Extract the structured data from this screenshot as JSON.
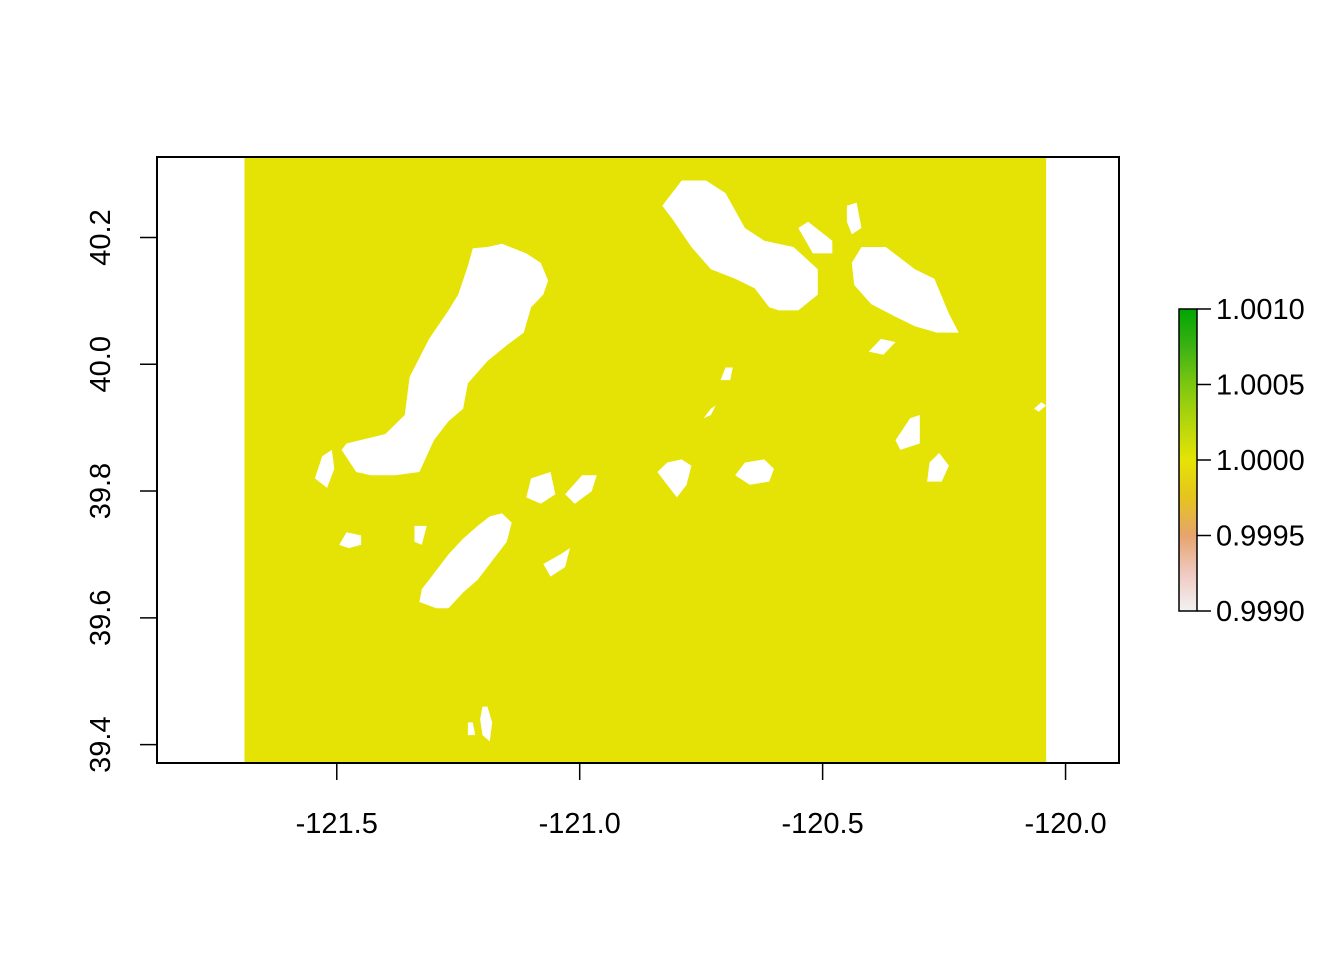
{
  "chart_data": {
    "type": "heatmap",
    "title": "",
    "xlabel": "",
    "ylabel": "",
    "xlim": [
      -121.87,
      -119.89
    ],
    "ylim": [
      39.371,
      40.327
    ],
    "raster_extent": {
      "xmin": -121.69,
      "xmax": -120.04,
      "ymin": 39.371,
      "ymax": 40.327
    },
    "raster_value": 1,
    "raster_color": "#E5E305",
    "nodata_color": "#FFFFFF",
    "x_ticks": [
      {
        "value": -121.5,
        "label": "-121.5"
      },
      {
        "value": -121.0,
        "label": "-121.0"
      },
      {
        "value": -120.5,
        "label": "-120.5"
      },
      {
        "value": -120.0,
        "label": "-120.0"
      }
    ],
    "y_ticks": [
      {
        "value": 39.4,
        "label": "39.4"
      },
      {
        "value": 39.6,
        "label": "39.6"
      },
      {
        "value": 39.8,
        "label": "39.8"
      },
      {
        "value": 40.0,
        "label": "40.0"
      },
      {
        "value": 40.2,
        "label": "40.2"
      }
    ],
    "legend": {
      "placement": "right",
      "range": [
        0.999,
        1.001
      ],
      "colors": [
        "#F2F2F2",
        "#F0C9C0",
        "#E6A46E",
        "#E5C41E",
        "#E5E305",
        "#B4D60C",
        "#7CC710",
        "#3CB214",
        "#00A600"
      ],
      "ticks": [
        {
          "value": 1.001,
          "label": "1.0010"
        },
        {
          "value": 1.0005,
          "label": "1.0005"
        },
        {
          "value": 1.0,
          "label": "1.0000"
        },
        {
          "value": 0.9995,
          "label": "0.9995"
        },
        {
          "value": 0.999,
          "label": "0.9990"
        }
      ]
    },
    "nodata_regions": [
      [
        [
          -121.22,
          40.183
        ],
        [
          -121.19,
          40.185
        ],
        [
          -121.16,
          40.19
        ],
        [
          -121.11,
          40.175
        ],
        [
          -121.08,
          40.16
        ],
        [
          -121.065,
          40.132
        ],
        [
          -121.075,
          40.11
        ],
        [
          -121.1,
          40.09
        ],
        [
          -121.115,
          40.05
        ],
        [
          -121.15,
          40.03
        ],
        [
          -121.19,
          40.005
        ],
        [
          -121.23,
          39.97
        ],
        [
          -121.24,
          39.93
        ],
        [
          -121.27,
          39.91
        ],
        [
          -121.3,
          39.88
        ],
        [
          -121.33,
          39.83
        ],
        [
          -121.38,
          39.825
        ],
        [
          -121.43,
          39.825
        ],
        [
          -121.46,
          39.83
        ],
        [
          -121.49,
          39.865
        ],
        [
          -121.48,
          39.875
        ],
        [
          -121.4,
          39.89
        ],
        [
          -121.36,
          39.92
        ],
        [
          -121.35,
          39.98
        ],
        [
          -121.31,
          40.04
        ],
        [
          -121.27,
          40.085
        ],
        [
          -121.25,
          40.11
        ],
        [
          -121.23,
          40.155
        ]
      ],
      [
        [
          -121.53,
          39.855
        ],
        [
          -121.51,
          39.865
        ],
        [
          -121.505,
          39.835
        ],
        [
          -121.52,
          39.805
        ],
        [
          -121.545,
          39.82
        ]
      ],
      [
        [
          -121.48,
          39.735
        ],
        [
          -121.45,
          39.73
        ],
        [
          -121.45,
          39.715
        ],
        [
          -121.475,
          39.71
        ],
        [
          -121.495,
          39.715
        ]
      ],
      [
        [
          -121.34,
          39.745
        ],
        [
          -121.315,
          39.745
        ],
        [
          -121.325,
          39.715
        ],
        [
          -121.34,
          39.72
        ]
      ],
      [
        [
          -121.16,
          39.765
        ],
        [
          -121.14,
          39.75
        ],
        [
          -121.15,
          39.72
        ],
        [
          -121.18,
          39.69
        ],
        [
          -121.21,
          39.66
        ],
        [
          -121.24,
          39.64
        ],
        [
          -121.27,
          39.615
        ],
        [
          -121.295,
          39.615
        ],
        [
          -121.33,
          39.625
        ],
        [
          -121.325,
          39.645
        ],
        [
          -121.3,
          39.67
        ],
        [
          -121.27,
          39.7
        ],
        [
          -121.24,
          39.725
        ],
        [
          -121.21,
          39.745
        ],
        [
          -121.185,
          39.76
        ]
      ],
      [
        [
          -121.1,
          39.82
        ],
        [
          -121.06,
          39.83
        ],
        [
          -121.05,
          39.795
        ],
        [
          -121.08,
          39.78
        ],
        [
          -121.11,
          39.79
        ]
      ],
      [
        [
          -120.995,
          39.825
        ],
        [
          -120.965,
          39.825
        ],
        [
          -120.975,
          39.8
        ],
        [
          -121.01,
          39.78
        ],
        [
          -121.03,
          39.795
        ]
      ],
      [
        [
          -121.04,
          39.7
        ],
        [
          -121.02,
          39.71
        ],
        [
          -121.03,
          39.68
        ],
        [
          -121.06,
          39.665
        ],
        [
          -121.075,
          39.685
        ]
      ],
      [
        [
          -120.79,
          40.29
        ],
        [
          -120.74,
          40.29
        ],
        [
          -120.7,
          40.27
        ],
        [
          -120.66,
          40.215
        ],
        [
          -120.62,
          40.195
        ],
        [
          -120.56,
          40.185
        ],
        [
          -120.51,
          40.15
        ],
        [
          -120.51,
          40.11
        ],
        [
          -120.55,
          40.085
        ],
        [
          -120.59,
          40.085
        ],
        [
          -120.61,
          40.09
        ],
        [
          -120.64,
          40.12
        ],
        [
          -120.68,
          40.135
        ],
        [
          -120.73,
          40.15
        ],
        [
          -120.77,
          40.185
        ],
        [
          -120.81,
          40.23
        ],
        [
          -120.83,
          40.25
        ]
      ],
      [
        [
          -120.55,
          40.215
        ],
        [
          -120.53,
          40.225
        ],
        [
          -120.48,
          40.195
        ],
        [
          -120.48,
          40.175
        ],
        [
          -120.52,
          40.175
        ]
      ],
      [
        [
          -120.45,
          40.25
        ],
        [
          -120.43,
          40.255
        ],
        [
          -120.42,
          40.215
        ],
        [
          -120.44,
          40.205
        ],
        [
          -120.45,
          40.225
        ]
      ],
      [
        [
          -120.42,
          40.185
        ],
        [
          -120.37,
          40.185
        ],
        [
          -120.31,
          40.15
        ],
        [
          -120.27,
          40.135
        ],
        [
          -120.24,
          40.08
        ],
        [
          -120.22,
          40.05
        ],
        [
          -120.265,
          40.05
        ],
        [
          -120.31,
          40.06
        ],
        [
          -120.35,
          40.075
        ],
        [
          -120.4,
          40.095
        ],
        [
          -120.435,
          40.125
        ],
        [
          -120.44,
          40.16
        ]
      ],
      [
        [
          -120.38,
          40.04
        ],
        [
          -120.35,
          40.035
        ],
        [
          -120.375,
          40.015
        ],
        [
          -120.405,
          40.02
        ]
      ],
      [
        [
          -120.32,
          39.915
        ],
        [
          -120.3,
          39.92
        ],
        [
          -120.3,
          39.875
        ],
        [
          -120.34,
          39.865
        ],
        [
          -120.35,
          39.88
        ]
      ],
      [
        [
          -120.26,
          39.86
        ],
        [
          -120.24,
          39.84
        ],
        [
          -120.255,
          39.815
        ],
        [
          -120.285,
          39.815
        ],
        [
          -120.28,
          39.845
        ]
      ],
      [
        [
          -120.62,
          39.85
        ],
        [
          -120.6,
          39.835
        ],
        [
          -120.61,
          39.815
        ],
        [
          -120.65,
          39.81
        ],
        [
          -120.68,
          39.825
        ],
        [
          -120.66,
          39.845
        ]
      ],
      [
        [
          -120.79,
          39.85
        ],
        [
          -120.77,
          39.84
        ],
        [
          -120.78,
          39.81
        ],
        [
          -120.8,
          39.79
        ],
        [
          -120.825,
          39.815
        ],
        [
          -120.84,
          39.83
        ],
        [
          -120.82,
          39.845
        ]
      ],
      [
        [
          -120.7,
          39.995
        ],
        [
          -120.685,
          39.995
        ],
        [
          -120.69,
          39.975
        ],
        [
          -120.71,
          39.975
        ]
      ],
      [
        [
          -120.73,
          39.93
        ],
        [
          -120.72,
          39.935
        ],
        [
          -120.73,
          39.92
        ],
        [
          -120.745,
          39.915
        ]
      ],
      [
        [
          -121.2,
          39.46
        ],
        [
          -121.19,
          39.46
        ],
        [
          -121.18,
          39.435
        ],
        [
          -121.185,
          39.405
        ],
        [
          -121.2,
          39.415
        ],
        [
          -121.205,
          39.44
        ]
      ],
      [
        [
          -121.23,
          39.435
        ],
        [
          -121.22,
          39.435
        ],
        [
          -121.215,
          39.415
        ],
        [
          -121.23,
          39.415
        ]
      ],
      [
        [
          -120.05,
          39.94
        ],
        [
          -120.04,
          39.935
        ],
        [
          -120.055,
          39.925
        ],
        [
          -120.065,
          39.93
        ]
      ]
    ]
  }
}
